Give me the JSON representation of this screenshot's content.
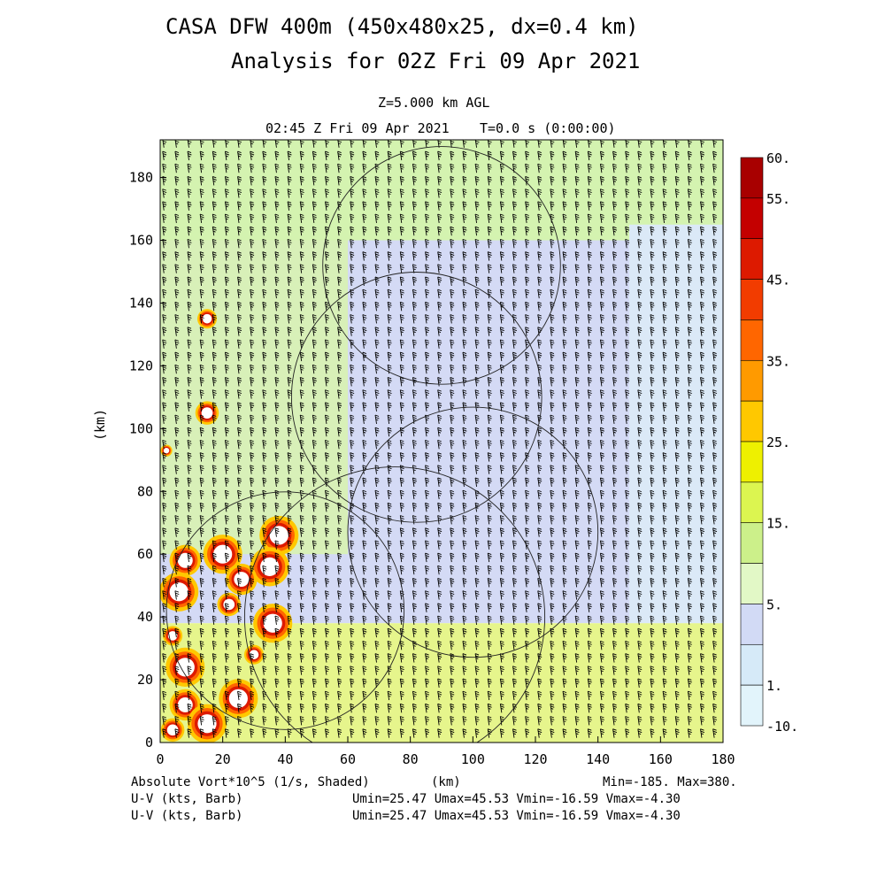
{
  "title_line1": "CASA DFW 400m (450x480x25, dx=0.4 km)",
  "title_line2": "Analysis for 02Z Fri 09 Apr 2021",
  "level": "Z=5.000 km AGL",
  "time": "02:45 Z Fri 09 Apr 2021",
  "model_time": "T=0.0 s (0:00:00)",
  "footer": {
    "field_label": "Absolute Vort*10^5 (1/s, Shaded)",
    "x_unit": "(km)",
    "min_max": "Min=-185. Max=380.",
    "barb_label_1": "U-V (kts, Barb)",
    "barb_stats_1": "Umin=25.47 Umax=45.53 Vmin=-16.59 Vmax=-4.30",
    "barb_label_2": "U-V (kts, Barb)",
    "barb_stats_2": "Umin=25.47 Umax=45.53 Vmin=-16.59 Vmax=-4.30"
  },
  "chart_data": {
    "type": "heatmap",
    "xlabel": "(km)",
    "ylabel": "(km)",
    "xlim": [
      0,
      180
    ],
    "ylim": [
      0,
      192
    ],
    "xticks": [
      0,
      20,
      40,
      60,
      80,
      100,
      120,
      140,
      160,
      180
    ],
    "yticks": [
      0,
      20,
      40,
      60,
      80,
      100,
      120,
      140,
      160,
      180
    ],
    "colorbar": {
      "labels": [
        "60.",
        "55.",
        "45.",
        "35.",
        "25.",
        "15.",
        "5.",
        "1.",
        "-10."
      ],
      "bands": [
        {
          "color": "#a80000"
        },
        {
          "color": "#c40000"
        },
        {
          "color": "#dd1a00"
        },
        {
          "color": "#f23c00"
        },
        {
          "color": "#ff6600"
        },
        {
          "color": "#ff9a00"
        },
        {
          "color": "#ffc800"
        },
        {
          "color": "#eef000"
        },
        {
          "color": "#dcf550"
        },
        {
          "color": "#ccf08a"
        },
        {
          "color": "#e2f8c6"
        },
        {
          "color": "#d2daf5"
        },
        {
          "color": "#d6eaf8"
        },
        {
          "color": "#e2f4fb"
        }
      ]
    },
    "regions": [
      {
        "name": "north-green",
        "x": [
          0,
          180
        ],
        "y": [
          160,
          192
        ],
        "color": "#d4f3b0"
      },
      {
        "name": "center-blue",
        "x": [
          0,
          180
        ],
        "y": [
          38,
          160
        ],
        "color": "#d4daf5"
      },
      {
        "name": "east-lightblue",
        "x": [
          150,
          180
        ],
        "y": [
          38,
          165
        ],
        "color": "#dbe9f7"
      },
      {
        "name": "west-green",
        "x": [
          0,
          60
        ],
        "y": [
          60,
          160
        ],
        "color": "#d8f0b8"
      },
      {
        "name": "south-yellow",
        "x": [
          0,
          180
        ],
        "y": [
          0,
          38
        ],
        "color": "#e6f58c"
      }
    ],
    "range_rings_km": [
      {
        "cx": 90,
        "cy": 152,
        "r": 38
      },
      {
        "cx": 82,
        "cy": 110,
        "r": 40
      },
      {
        "cx": 100,
        "cy": 67,
        "r": 40
      },
      {
        "cx": 40,
        "cy": 42,
        "r": 38
      },
      {
        "cx": 75,
        "cy": 40,
        "r": 48
      }
    ],
    "vorticity_cells": [
      {
        "x": 15,
        "y": 135,
        "r": 2.5
      },
      {
        "x": 15,
        "y": 105,
        "r": 3
      },
      {
        "x": 2,
        "y": 93,
        "r": 1.5
      },
      {
        "x": 38,
        "y": 66,
        "r": 5
      },
      {
        "x": 20,
        "y": 60,
        "r": 5
      },
      {
        "x": 8,
        "y": 58,
        "r": 4
      },
      {
        "x": 35,
        "y": 56,
        "r": 5
      },
      {
        "x": 26,
        "y": 52,
        "r": 4
      },
      {
        "x": 6,
        "y": 48,
        "r": 5
      },
      {
        "x": 22,
        "y": 44,
        "r": 3
      },
      {
        "x": 36,
        "y": 38,
        "r": 5
      },
      {
        "x": 4,
        "y": 34,
        "r": 2.5
      },
      {
        "x": 30,
        "y": 28,
        "r": 2.5
      },
      {
        "x": 8,
        "y": 24,
        "r": 5
      },
      {
        "x": 25,
        "y": 14,
        "r": 5
      },
      {
        "x": 8,
        "y": 12,
        "r": 4
      },
      {
        "x": 15,
        "y": 6,
        "r": 5
      },
      {
        "x": 4,
        "y": 4,
        "r": 3
      }
    ],
    "wind_barbs": {
      "u_min": 25.47,
      "u_max": 45.53,
      "v_min": -16.59,
      "v_max": -4.3,
      "spacing_km": 4
    }
  }
}
